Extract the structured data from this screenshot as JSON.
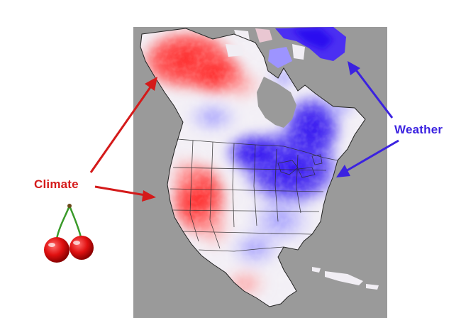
{
  "labels": {
    "climate": "Climate",
    "weather": "Weather"
  },
  "colors": {
    "climate": "#d41a1a",
    "weather": "#3b22e0",
    "ocean": "#9a9a9a",
    "warm_anomaly": "#ff2a2a",
    "cold_anomaly": "#2b10f0"
  },
  "icons": {
    "climate_icon": "cherry-icon"
  }
}
